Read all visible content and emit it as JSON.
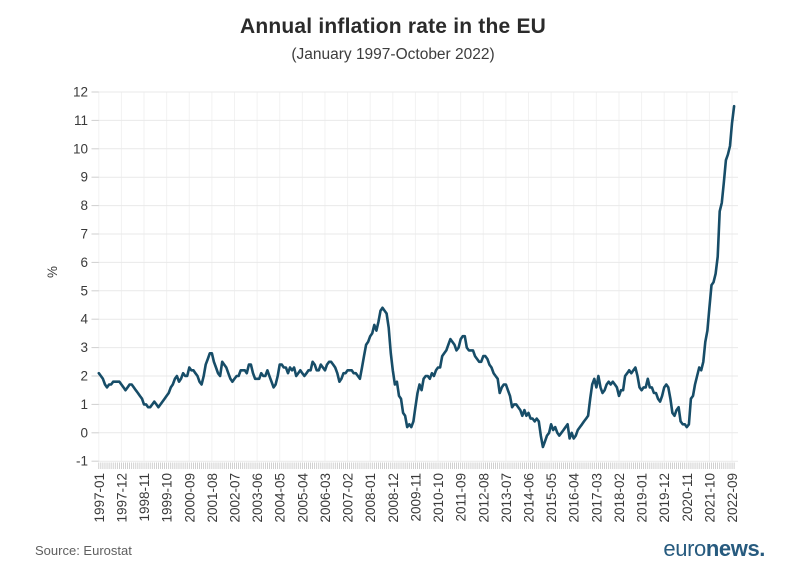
{
  "header": {
    "title": "Annual inflation rate in the EU",
    "subtitle": "(January 1997-October 2022)"
  },
  "footer": {
    "source": "Source: Eurostat",
    "logo_euro": "euro",
    "logo_news": "news."
  },
  "chart_data": {
    "type": "line",
    "title": "Annual inflation rate in the EU",
    "subtitle": "(January 1997-October 2022)",
    "xlabel": "",
    "ylabel": "%",
    "ylim": [
      -1,
      12
    ],
    "grid": true,
    "legend": "none",
    "line_color": "#174d68",
    "start_month": "1997-01",
    "end_month": "2022-10",
    "x_tick_every_n_months": 11,
    "x_tick_labels": [
      "1997-01",
      "1997-12",
      "1998-11",
      "1999-10",
      "2000-09",
      "2001-08",
      "2002-07",
      "2003-06",
      "2004-05",
      "2005-04",
      "2006-03",
      "2007-02",
      "2008-01",
      "2008-12",
      "2009-11",
      "2010-10",
      "2011-09",
      "2012-08",
      "2013-07",
      "2014-06",
      "2015-05",
      "2016-04",
      "2017-03",
      "2018-02",
      "2019-01",
      "2019-12",
      "2020-11",
      "2021-10",
      "2022-09"
    ],
    "y_ticks": [
      -1,
      0,
      1,
      2,
      3,
      4,
      5,
      6,
      7,
      8,
      9,
      10,
      11,
      12
    ],
    "values": [
      2.1,
      2.0,
      1.9,
      1.7,
      1.6,
      1.7,
      1.7,
      1.8,
      1.8,
      1.8,
      1.8,
      1.7,
      1.6,
      1.5,
      1.6,
      1.7,
      1.7,
      1.6,
      1.5,
      1.4,
      1.3,
      1.2,
      1.0,
      1.0,
      0.9,
      0.9,
      1.0,
      1.1,
      1.0,
      0.9,
      1.0,
      1.1,
      1.2,
      1.3,
      1.4,
      1.6,
      1.7,
      1.9,
      2.0,
      1.8,
      1.9,
      2.1,
      2.0,
      2.0,
      2.3,
      2.2,
      2.2,
      2.1,
      2.0,
      1.8,
      1.7,
      2.0,
      2.4,
      2.6,
      2.8,
      2.8,
      2.5,
      2.3,
      2.1,
      2.0,
      2.5,
      2.4,
      2.3,
      2.1,
      1.9,
      1.8,
      1.9,
      2.0,
      2.0,
      2.2,
      2.2,
      2.2,
      2.1,
      2.4,
      2.4,
      2.1,
      1.9,
      1.9,
      1.9,
      2.1,
      2.0,
      2.0,
      2.2,
      2.0,
      1.8,
      1.6,
      1.7,
      2.0,
      2.4,
      2.4,
      2.3,
      2.3,
      2.1,
      2.3,
      2.2,
      2.3,
      2.0,
      2.1,
      2.2,
      2.1,
      2.0,
      2.1,
      2.2,
      2.2,
      2.5,
      2.4,
      2.2,
      2.2,
      2.4,
      2.3,
      2.2,
      2.4,
      2.5,
      2.5,
      2.4,
      2.3,
      2.1,
      1.8,
      1.9,
      2.1,
      2.1,
      2.2,
      2.2,
      2.2,
      2.1,
      2.1,
      2.0,
      1.9,
      2.3,
      2.7,
      3.1,
      3.2,
      3.4,
      3.5,
      3.8,
      3.6,
      3.9,
      4.3,
      4.4,
      4.3,
      4.2,
      3.7,
      2.8,
      2.2,
      1.7,
      1.8,
      1.3,
      1.2,
      0.7,
      0.6,
      0.2,
      0.3,
      0.2,
      0.4,
      0.9,
      1.4,
      1.7,
      1.5,
      1.9,
      2.0,
      2.0,
      1.9,
      2.1,
      2.0,
      2.2,
      2.3,
      2.3,
      2.7,
      2.8,
      2.9,
      3.1,
      3.3,
      3.2,
      3.1,
      2.9,
      3.0,
      3.3,
      3.4,
      3.4,
      3.0,
      2.9,
      2.9,
      2.9,
      2.7,
      2.6,
      2.5,
      2.5,
      2.7,
      2.7,
      2.6,
      2.4,
      2.3,
      2.1,
      2.0,
      1.9,
      1.4,
      1.6,
      1.7,
      1.7,
      1.5,
      1.3,
      0.9,
      1.0,
      1.0,
      0.9,
      0.8,
      0.6,
      0.8,
      0.6,
      0.7,
      0.5,
      0.5,
      0.4,
      0.5,
      0.4,
      -0.1,
      -0.5,
      -0.3,
      -0.1,
      0.0,
      0.3,
      0.1,
      0.2,
      0.0,
      -0.1,
      0.0,
      0.1,
      0.2,
      0.3,
      -0.2,
      0.0,
      -0.2,
      -0.1,
      0.1,
      0.2,
      0.3,
      0.4,
      0.5,
      0.6,
      1.2,
      1.7,
      1.9,
      1.6,
      2.0,
      1.6,
      1.4,
      1.5,
      1.7,
      1.8,
      1.7,
      1.8,
      1.7,
      1.6,
      1.3,
      1.5,
      1.5,
      2.0,
      2.1,
      2.2,
      2.1,
      2.2,
      2.3,
      2.0,
      1.6,
      1.5,
      1.6,
      1.6,
      1.9,
      1.6,
      1.6,
      1.4,
      1.4,
      1.2,
      1.1,
      1.3,
      1.6,
      1.7,
      1.6,
      1.2,
      0.7,
      0.6,
      0.8,
      0.9,
      0.4,
      0.3,
      0.3,
      0.2,
      0.3,
      1.2,
      1.3,
      1.7,
      2.0,
      2.3,
      2.2,
      2.5,
      3.2,
      3.6,
      4.4,
      5.2,
      5.3,
      5.6,
      6.2,
      7.8,
      8.1,
      8.8,
      9.6,
      9.8,
      10.1,
      10.9,
      11.5
    ]
  }
}
